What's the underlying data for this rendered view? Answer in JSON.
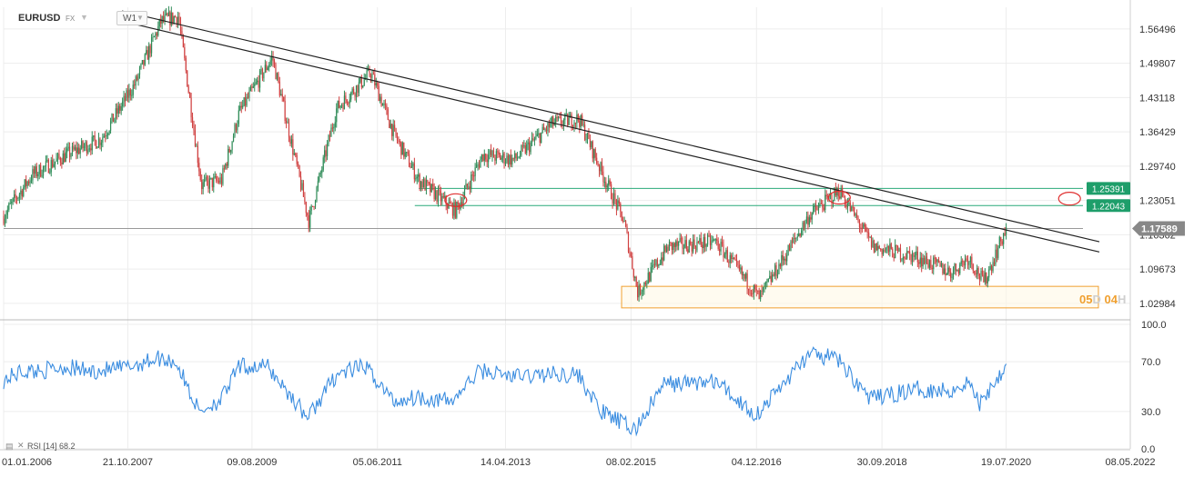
{
  "header": {
    "symbol": "EURUSD",
    "venue": "FX",
    "period": "W1"
  },
  "countdown": {
    "d_value": "05",
    "d_unit": "D",
    "h_value": "04",
    "h_unit": "H"
  },
  "rsi_label": "RSI [14]  68.2",
  "chart_data": [
    {
      "type": "candlestick",
      "xlim": [
        "2006-01-01",
        "2022-05-08"
      ],
      "ylim": [
        0.9995,
        1.6072
      ],
      "x_ticks": [
        "01.01.2006",
        "21.10.2007",
        "09.08.2009",
        "05.06.2011",
        "14.04.2013",
        "08.02.2015",
        "04.12.2016",
        "30.09.2018",
        "19.07.2020",
        "08.05.2022"
      ],
      "y_ticks": [
        "1.56496",
        "1.49807",
        "1.43118",
        "1.36429",
        "1.29740",
        "1.23051",
        "1.16362",
        "1.09673",
        "1.02984"
      ],
      "last_price": "1.17589",
      "price_path": [
        [
          "2006-01-01",
          1.2
        ],
        [
          "2006-06-01",
          1.28
        ],
        [
          "2006-12-01",
          1.32
        ],
        [
          "2007-06-01",
          1.35
        ],
        [
          "2007-12-01",
          1.46
        ],
        [
          "2008-04-15",
          1.58
        ],
        [
          "2008-07-15",
          1.59
        ],
        [
          "2008-11-15",
          1.26
        ],
        [
          "2009-03-01",
          1.27
        ],
        [
          "2009-06-01",
          1.4
        ],
        [
          "2009-11-25",
          1.51
        ],
        [
          "2010-06-07",
          1.19
        ],
        [
          "2010-11-01",
          1.41
        ],
        [
          "2011-05-01",
          1.48
        ],
        [
          "2011-09-01",
          1.36
        ],
        [
          "2012-01-10",
          1.27
        ],
        [
          "2012-07-24",
          1.21
        ],
        [
          "2012-12-15",
          1.32
        ],
        [
          "2013-06-01",
          1.31
        ],
        [
          "2013-12-15",
          1.38
        ],
        [
          "2014-05-08",
          1.39
        ],
        [
          "2014-09-01",
          1.29
        ],
        [
          "2015-01-01",
          1.19
        ],
        [
          "2015-03-16",
          1.05
        ],
        [
          "2015-08-24",
          1.14
        ],
        [
          "2016-05-03",
          1.15
        ],
        [
          "2016-12-20",
          1.04
        ],
        [
          "2017-09-08",
          1.2
        ],
        [
          "2018-02-16",
          1.25
        ],
        [
          "2018-08-15",
          1.14
        ],
        [
          "2019-04-01",
          1.12
        ],
        [
          "2019-10-01",
          1.09
        ],
        [
          "2020-01-01",
          1.12
        ],
        [
          "2020-03-23",
          1.07
        ],
        [
          "2020-07-19",
          1.17589
        ]
      ],
      "trendlines": [
        {
          "from": [
            "2007-09-20",
            1.6
          ],
          "to": [
            "2021-11-25",
            1.15
          ]
        },
        {
          "from": [
            "2007-09-20",
            1.58
          ],
          "to": [
            "2021-11-25",
            1.13
          ]
        }
      ],
      "horizontal_lines": [
        {
          "value": "1.25391",
          "from": "2012-01-10"
        },
        {
          "value": "1.22043",
          "from": "2011-12-20"
        },
        {
          "value": "1.17589",
          "from": "2006-01-01"
        }
      ],
      "zone": {
        "from": "2014-12-20",
        "to": "2021-11-20",
        "low": 1.021,
        "high": 1.063
      },
      "markers": [
        {
          "x": "2012-07-24",
          "y": 1.231
        },
        {
          "x": "2018-02-16",
          "y": 1.236
        },
        {
          "x": "2021-06-20",
          "y": 1.234
        }
      ]
    },
    {
      "type": "line",
      "name": "RSI [14]",
      "value": "68.2",
      "ylim": [
        0,
        100
      ],
      "y_ticks": [
        "100.0",
        "70.0",
        "30.0",
        "0.0"
      ],
      "path": [
        [
          "2006-01-01",
          55
        ],
        [
          "2006-04-01",
          62
        ],
        [
          "2006-08-01",
          63
        ],
        [
          "2006-12-01",
          66
        ],
        [
          "2007-04-01",
          62
        ],
        [
          "2007-10-01",
          65
        ],
        [
          "2008-04-01",
          73
        ],
        [
          "2008-07-01",
          70
        ],
        [
          "2008-11-01",
          30
        ],
        [
          "2009-03-01",
          40
        ],
        [
          "2009-06-01",
          66
        ],
        [
          "2009-11-01",
          66
        ],
        [
          "2010-06-01",
          25
        ],
        [
          "2010-11-01",
          60
        ],
        [
          "2011-04-01",
          66
        ],
        [
          "2011-09-01",
          38
        ],
        [
          "2012-01-01",
          42
        ],
        [
          "2012-07-01",
          38
        ],
        [
          "2012-12-01",
          63
        ],
        [
          "2013-06-01",
          58
        ],
        [
          "2013-12-01",
          60
        ],
        [
          "2014-05-01",
          60
        ],
        [
          "2014-09-01",
          30
        ],
        [
          "2015-01-01",
          20
        ],
        [
          "2015-03-01",
          15
        ],
        [
          "2015-08-01",
          52
        ],
        [
          "2016-05-01",
          54
        ],
        [
          "2016-12-01",
          27
        ],
        [
          "2017-09-01",
          75
        ],
        [
          "2018-02-01",
          73
        ],
        [
          "2018-08-01",
          40
        ],
        [
          "2019-04-01",
          48
        ],
        [
          "2019-10-01",
          47
        ],
        [
          "2020-01-01",
          54
        ],
        [
          "2020-03-01",
          36
        ],
        [
          "2020-07-19",
          68.2
        ]
      ]
    }
  ],
  "colors": {
    "up": "#2e8b57",
    "down": "#d04040",
    "rsi": "#3b8de0",
    "level_line": "#2aaa7a",
    "level_badge": "#1e9e6a",
    "zone": "#f0a030",
    "marker": "#e03030",
    "last_price_badge": "#888888",
    "grid": "#ededed",
    "trendline": "#222222"
  }
}
